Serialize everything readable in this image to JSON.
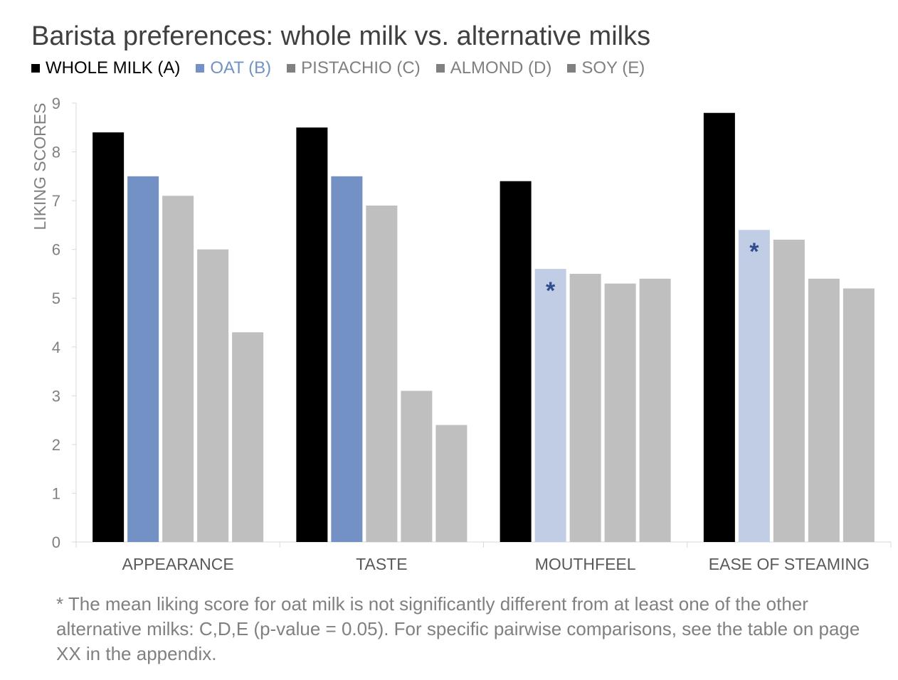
{
  "chart_data": {
    "type": "bar",
    "title": "Barista preferences: whole milk vs. alternative milks",
    "ylabel": "LIKING SCORES",
    "xlabel": "",
    "ylim": [
      0,
      9
    ],
    "yticks": [
      "0",
      "1",
      "2",
      "3",
      "4",
      "5",
      "6",
      "7",
      "8",
      "9"
    ],
    "grid": false,
    "legend_position": "top-left",
    "categories": [
      "APPEARANCE",
      "TASTE",
      "MOUTHFEEL",
      "EASE OF STEAMING"
    ],
    "series": [
      {
        "name": "WHOLE MILK (A)",
        "color": "#000000",
        "values": [
          8.4,
          8.5,
          7.4,
          8.8
        ]
      },
      {
        "name": "OAT (B)",
        "color": "#7391c4",
        "values": [
          7.5,
          7.5,
          5.6,
          6.4
        ]
      },
      {
        "name": "PISTACHIO (C)",
        "color": "#bfbfbf",
        "values": [
          7.1,
          6.9,
          5.5,
          6.2
        ]
      },
      {
        "name": "ALMOND (D)",
        "color": "#bfbfbf",
        "values": [
          6.0,
          3.1,
          5.3,
          5.4
        ]
      },
      {
        "name": "SOY (E)",
        "color": "#bfbfbf",
        "values": [
          4.3,
          2.4,
          5.4,
          5.2
        ]
      }
    ],
    "highlight": {
      "series": "OAT (B)",
      "categories": [
        "MOUTHFEEL",
        "EASE OF STEAMING"
      ],
      "color": "#c1cce5",
      "marker": "*",
      "marker_color": "#2e4d8f"
    },
    "legend_colors": {
      "WHOLE MILK (A)": "#000000",
      "OAT (B)": "#7391c4",
      "PISTACHIO (C)": "#808080",
      "ALMOND (D)": "#808080",
      "SOY (E)": "#808080"
    },
    "axis_color": "#d9d9d9",
    "text_color": "#808080"
  },
  "footnote": "* The mean liking score for oat milk is not significantly different from at least one of the other alternative milks: C,D,E (p-value = 0.05). For specific pairwise comparisons, see the table on page XX in the appendix."
}
